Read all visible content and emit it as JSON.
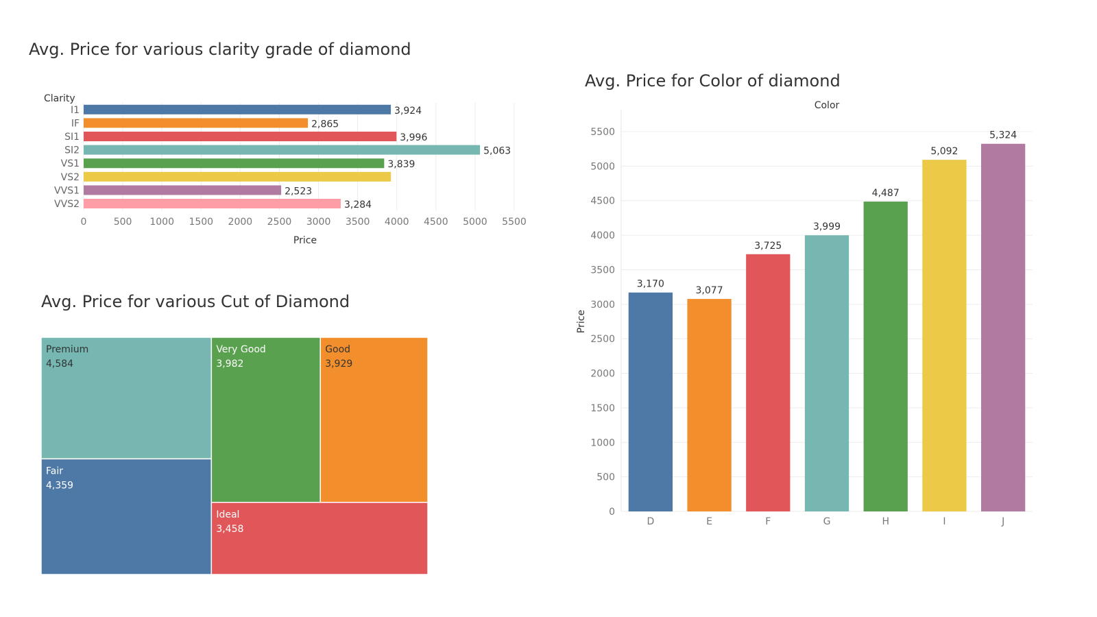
{
  "chart_data": [
    {
      "id": "clarity",
      "type": "bar",
      "orientation": "horizontal",
      "title": "Avg. Price for various clarity grade of diamond",
      "category_axis_title": "Clarity",
      "xlabel": "Price",
      "categories": [
        "I1",
        "IF",
        "SI1",
        "SI2",
        "VS1",
        "VS2",
        "VVS1",
        "VVS2"
      ],
      "values": [
        3924,
        2865,
        3996,
        5063,
        3839,
        3925,
        2523,
        3284
      ],
      "value_labels": [
        "3,924",
        "2,865",
        "3,996",
        "5,063",
        "3,839",
        "",
        "2,523",
        "3,284"
      ],
      "colors": [
        "#4e79a7",
        "#f28e2b",
        "#e15759",
        "#76b7b2",
        "#59a14f",
        "#edc948",
        "#b07aa1",
        "#ff9da7"
      ],
      "xlim": [
        0,
        5500
      ],
      "ticks": [
        0,
        500,
        1000,
        1500,
        2000,
        2500,
        3000,
        3500,
        4000,
        4500,
        5000,
        5500
      ],
      "grid": true
    },
    {
      "id": "cut",
      "type": "treemap",
      "title": "Avg. Price for various Cut of Diamond",
      "categories": [
        "Premium",
        "Fair",
        "Very Good",
        "Good",
        "Ideal"
      ],
      "values": [
        4584,
        4359,
        3982,
        3929,
        3458
      ],
      "value_labels": [
        "4,584",
        "4,359",
        "3,982",
        "3,929",
        "3,458"
      ],
      "colors": [
        "#76b7b2",
        "#4e79a7",
        "#59a14f",
        "#f28e2b",
        "#e15759"
      ]
    },
    {
      "id": "color",
      "type": "bar",
      "orientation": "vertical",
      "title": "Avg. Price for Color of diamond",
      "header": "Color",
      "ylabel": "Price",
      "categories": [
        "D",
        "E",
        "F",
        "G",
        "H",
        "I",
        "J"
      ],
      "values": [
        3170,
        3077,
        3725,
        3999,
        4487,
        5092,
        5324
      ],
      "value_labels": [
        "3,170",
        "3,077",
        "3,725",
        "3,999",
        "4,487",
        "5,092",
        "5,324"
      ],
      "colors": [
        "#4e79a7",
        "#f28e2b",
        "#e15759",
        "#76b7b2",
        "#59a14f",
        "#edc948",
        "#b07aa1"
      ],
      "ylim": [
        0,
        5500
      ],
      "ticks": [
        0,
        500,
        1000,
        1500,
        2000,
        2500,
        3000,
        3500,
        4000,
        4500,
        5000,
        5500
      ],
      "grid": true
    }
  ]
}
